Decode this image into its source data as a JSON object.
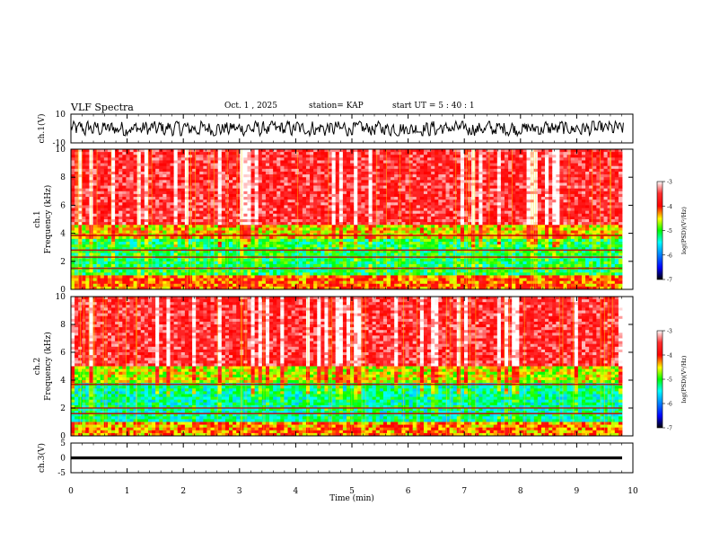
{
  "header": {
    "title": "VLF Spectra",
    "date": "Oct. 1 , 2025",
    "station": "station= KAP",
    "start": "start  UT =  5 : 40 : 1"
  },
  "chart_data": [
    {
      "type": "line",
      "name": "ch1-waveform",
      "ylabel": "ch.1(V)",
      "ylim": [
        -10,
        10
      ],
      "yticks": [
        "10",
        "-10"
      ],
      "xlim": [
        0,
        9.83
      ],
      "amplitude_range": [
        -5,
        5
      ]
    },
    {
      "type": "heatmap",
      "name": "ch1-spectrogram",
      "ylabel": "ch.1\nFrequency (kHz)",
      "ylabel_top": "ch.1",
      "ylabel_main": "Frequency (kHz)",
      "ylim": [
        0,
        10
      ],
      "yticks": [
        "0",
        "2",
        "4",
        "6",
        "8",
        "10"
      ],
      "xlim": [
        0,
        9.83
      ],
      "colorbar": {
        "label": "log(PSD)(V²/Hz)",
        "range": [
          -7,
          -3
        ],
        "ticks": [
          "-3",
          "-4",
          "-5",
          "-6",
          "-7"
        ]
      },
      "bands": [
        {
          "from_khz": 0,
          "to_khz": 1.0,
          "level": -4.2
        },
        {
          "from_khz": 1.0,
          "to_khz": 3.7,
          "level": -5.1
        },
        {
          "from_khz": 3.7,
          "to_khz": 4.6,
          "level": -4.5
        },
        {
          "from_khz": 4.6,
          "to_khz": 10,
          "level": -3.6
        }
      ],
      "lines_khz": [
        3.85,
        2.8,
        2.3,
        1.5
      ]
    },
    {
      "type": "heatmap",
      "name": "ch2-spectrogram",
      "ylabel": "ch.2\nFrequency (kHz)",
      "ylabel_top": "ch.2",
      "ylabel_main": "Frequency (kHz)",
      "ylim": [
        0,
        10
      ],
      "yticks": [
        "0",
        "2",
        "4",
        "6",
        "8",
        "10"
      ],
      "xlim": [
        0,
        9.83
      ],
      "colorbar": {
        "label": "log(PSD)(V²/Hz)",
        "range": [
          -7,
          -3
        ],
        "ticks": [
          "-3",
          "-4",
          "-5",
          "-6",
          "-7"
        ]
      },
      "bands": [
        {
          "from_khz": 0,
          "to_khz": 1.0,
          "level": -4.3
        },
        {
          "from_khz": 1.0,
          "to_khz": 3.8,
          "level": -5.3
        },
        {
          "from_khz": 3.8,
          "to_khz": 5.0,
          "level": -4.6
        },
        {
          "from_khz": 5.0,
          "to_khz": 10,
          "level": -3.6
        }
      ],
      "lines_khz": [
        3.7,
        2.0,
        1.6
      ]
    },
    {
      "type": "line",
      "name": "ch3-waveform",
      "ylabel": "ch.3(V)",
      "ylim": [
        -5,
        5
      ],
      "yticks": [
        "5",
        "0",
        "-5"
      ],
      "xlim": [
        0,
        9.83
      ],
      "level": 0,
      "band_halfwidth": 0.5
    }
  ],
  "xaxis": {
    "label": "Time  (min)",
    "range": [
      0,
      10
    ],
    "ticks": [
      "0",
      "1",
      "2",
      "3",
      "4",
      "5",
      "6",
      "7",
      "8",
      "9",
      "10"
    ]
  }
}
